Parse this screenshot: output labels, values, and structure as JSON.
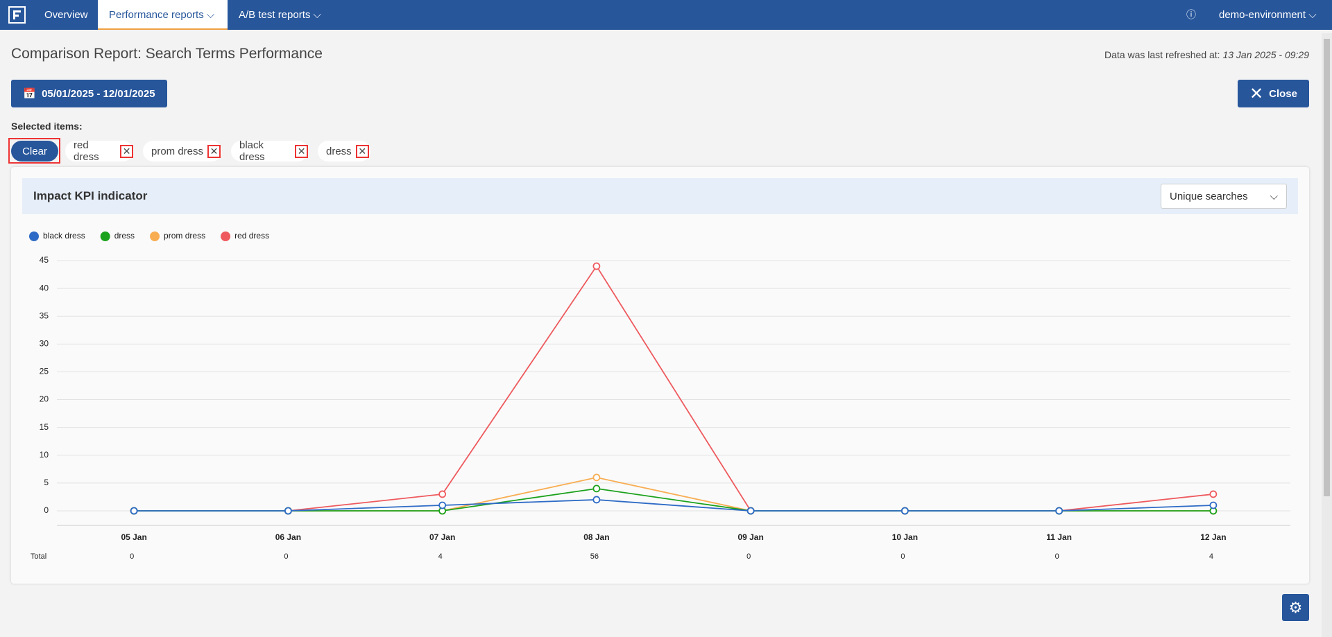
{
  "nav": {
    "items": [
      "Overview",
      "Performance reports",
      "A/B test reports"
    ],
    "environment": "demo-environment"
  },
  "header": {
    "title": "Comparison Report: Search Terms Performance",
    "refresh_label": "Data was last refreshed at:",
    "refresh_time": "13 Jan 2025 - 09:29"
  },
  "toolbar": {
    "date_range": "05/01/2025 - 12/01/2025",
    "close": "Close"
  },
  "selection": {
    "label": "Selected items:",
    "clear": "Clear",
    "chips": [
      "red dress",
      "prom dress",
      "black dress",
      "dress"
    ]
  },
  "panel": {
    "title": "Impact KPI indicator",
    "dropdown": "Unique searches"
  },
  "chart_data": {
    "type": "line",
    "categories": [
      "05 Jan",
      "06 Jan",
      "07 Jan",
      "08 Jan",
      "09 Jan",
      "10 Jan",
      "11 Jan",
      "12 Jan"
    ],
    "series": [
      {
        "name": "black dress",
        "color": "#2e6bc6",
        "values": [
          0,
          0,
          1,
          2,
          0,
          0,
          0,
          1
        ]
      },
      {
        "name": "dress",
        "color": "#1ca21c",
        "values": [
          0,
          0,
          0,
          4,
          0,
          0,
          0,
          0
        ]
      },
      {
        "name": "prom dress",
        "color": "#f8ad52",
        "values": [
          0,
          0,
          0,
          6,
          0,
          0,
          0,
          0
        ]
      },
      {
        "name": "red dress",
        "color": "#ee5a5e",
        "values": [
          0,
          0,
          3,
          44,
          0,
          0,
          0,
          3
        ]
      }
    ],
    "ylim": [
      0,
      45
    ],
    "yticks": [
      0,
      5,
      10,
      15,
      20,
      25,
      30,
      35,
      40,
      45
    ],
    "grid": true,
    "totals_label": "Total",
    "totals": [
      0,
      0,
      4,
      56,
      0,
      0,
      0,
      4
    ]
  }
}
